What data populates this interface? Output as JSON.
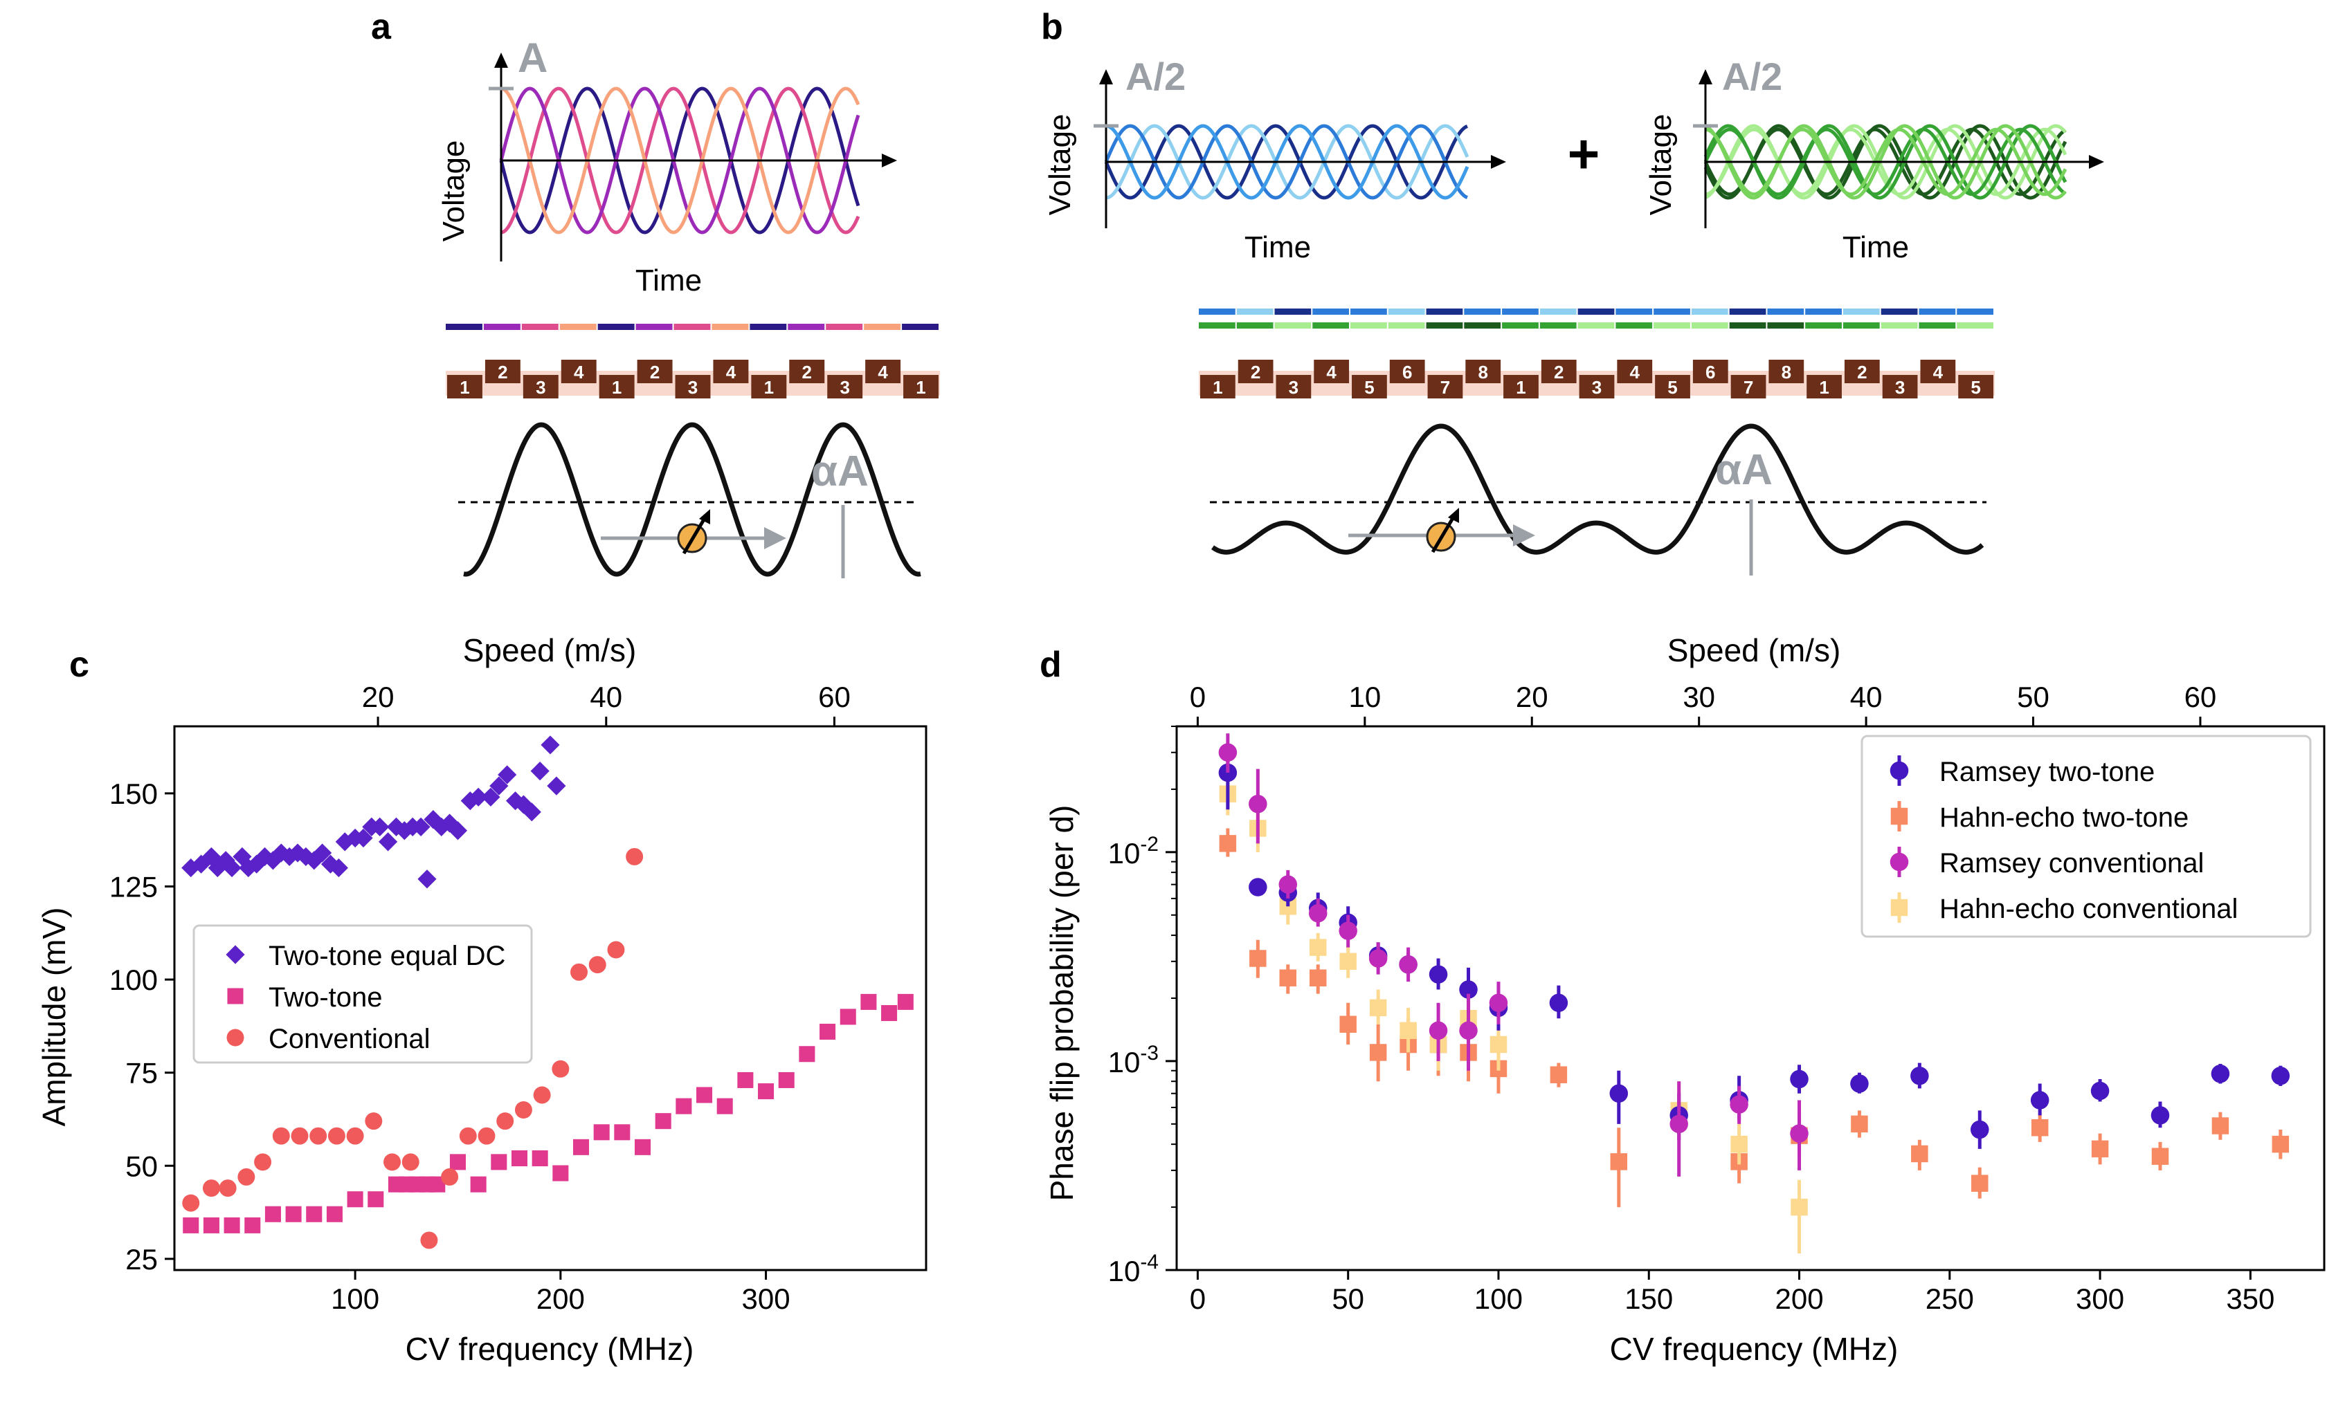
{
  "panel_labels": {
    "a": "a",
    "b": "b",
    "c": "c",
    "d": "d"
  },
  "panel_a": {
    "ylabel": "Voltage",
    "xlabel": "Time",
    "amp_label": "A",
    "tile_numbers": [
      "1",
      "2",
      "3",
      "4",
      "1",
      "2",
      "3",
      "4",
      "1",
      "2",
      "3",
      "4",
      "1"
    ],
    "alpha_label": "αA",
    "colors": {
      "navy": "#2b1a86",
      "purple": "#9b2ab8",
      "pink": "#de4c8e",
      "orange": "#f7a27a",
      "tile": "#6b2f19",
      "tile_bg": "#f8d8cc",
      "gray": "#9aa0a6"
    }
  },
  "panel_b": {
    "left": {
      "ylabel": "Voltage",
      "xlabel": "Time",
      "amp_label": "A/2"
    },
    "right": {
      "ylabel": "Voltage",
      "xlabel": "Time",
      "amp_label": "A/2"
    },
    "plus": "+",
    "tile_numbers": [
      "1",
      "2",
      "3",
      "4",
      "5",
      "6",
      "7",
      "8",
      "1",
      "2",
      "3",
      "4",
      "5",
      "6",
      "7",
      "8",
      "1",
      "2",
      "3",
      "4",
      "5"
    ],
    "alpha_label": "αA",
    "colors": {
      "blue1": "#1a2f8a",
      "blue2": "#2c7bd8",
      "blue3": "#8fd0f0",
      "green1": "#1d5a1d",
      "green2": "#34a334",
      "green3": "#a8ec90"
    }
  },
  "chart_data": [
    {
      "id": "c",
      "type": "scatter",
      "title": "",
      "xlabel": "CV frequency (MHz)",
      "ylabel": "Amplitude (mV)",
      "top_xlabel": "Speed (m/s)",
      "xlim": [
        12,
        378
      ],
      "ylim": [
        22,
        168
      ],
      "xticks": [
        100,
        200,
        300
      ],
      "yticks": [
        25,
        50,
        75,
        100,
        125,
        150
      ],
      "top_xticks": [
        20,
        40,
        60
      ],
      "speed_per_mhz": 0.18,
      "legend_position": "center-left",
      "series": [
        {
          "name": "Two-tone equal DC",
          "marker": "diamond",
          "color": "#5a22c8",
          "points": [
            [
              20,
              130
            ],
            [
              25,
              131
            ],
            [
              30,
              133
            ],
            [
              33,
              130
            ],
            [
              37,
              132
            ],
            [
              40,
              130
            ],
            [
              45,
              133
            ],
            [
              48,
              130
            ],
            [
              52,
              131
            ],
            [
              56,
              133
            ],
            [
              60,
              132
            ],
            [
              64,
              134
            ],
            [
              68,
              133
            ],
            [
              72,
              134
            ],
            [
              76,
              133
            ],
            [
              80,
              132
            ],
            [
              84,
              134
            ],
            [
              88,
              131
            ],
            [
              92,
              130
            ],
            [
              95,
              137
            ],
            [
              100,
              138
            ],
            [
              104,
              138
            ],
            [
              108,
              141
            ],
            [
              112,
              141
            ],
            [
              116,
              137
            ],
            [
              120,
              141
            ],
            [
              124,
              140
            ],
            [
              128,
              141
            ],
            [
              132,
              141
            ],
            [
              135,
              127
            ],
            [
              138,
              143
            ],
            [
              142,
              141
            ],
            [
              146,
              142
            ],
            [
              150,
              140
            ],
            [
              156,
              148
            ],
            [
              160,
              149
            ],
            [
              166,
              149
            ],
            [
              170,
              152
            ],
            [
              174,
              155
            ],
            [
              178,
              148
            ],
            [
              182,
              147
            ],
            [
              186,
              145
            ],
            [
              190,
              156
            ],
            [
              195,
              163
            ],
            [
              198,
              152
            ]
          ]
        },
        {
          "name": "Two-tone",
          "marker": "square",
          "color": "#e0398e",
          "points": [
            [
              20,
              34
            ],
            [
              30,
              34
            ],
            [
              40,
              34
            ],
            [
              50,
              34
            ],
            [
              60,
              37
            ],
            [
              70,
              37
            ],
            [
              80,
              37
            ],
            [
              90,
              37
            ],
            [
              100,
              41
            ],
            [
              110,
              41
            ],
            [
              120,
              45
            ],
            [
              125,
              45
            ],
            [
              130,
              45
            ],
            [
              135,
              45
            ],
            [
              140,
              45
            ],
            [
              150,
              51
            ],
            [
              160,
              45
            ],
            [
              170,
              51
            ],
            [
              180,
              52
            ],
            [
              190,
              52
            ],
            [
              200,
              48
            ],
            [
              210,
              55
            ],
            [
              220,
              59
            ],
            [
              230,
              59
            ],
            [
              240,
              55
            ],
            [
              250,
              62
            ],
            [
              260,
              66
            ],
            [
              270,
              69
            ],
            [
              280,
              66
            ],
            [
              290,
              73
            ],
            [
              300,
              70
            ],
            [
              310,
              73
            ],
            [
              320,
              80
            ],
            [
              330,
              86
            ],
            [
              340,
              90
            ],
            [
              350,
              94
            ],
            [
              360,
              91
            ],
            [
              368,
              94
            ]
          ]
        },
        {
          "name": "Conventional",
          "marker": "circle",
          "color": "#f15a5a",
          "points": [
            [
              20,
              40
            ],
            [
              30,
              44
            ],
            [
              38,
              44
            ],
            [
              47,
              47
            ],
            [
              55,
              51
            ],
            [
              64,
              58
            ],
            [
              73,
              58
            ],
            [
              82,
              58
            ],
            [
              91,
              58
            ],
            [
              100,
              58
            ],
            [
              109,
              62
            ],
            [
              118,
              51
            ],
            [
              127,
              51
            ],
            [
              136,
              30
            ],
            [
              146,
              47
            ],
            [
              155,
              58
            ],
            [
              164,
              58
            ],
            [
              173,
              62
            ],
            [
              182,
              65
            ],
            [
              191,
              69
            ],
            [
              200,
              76
            ],
            [
              209,
              102
            ],
            [
              218,
              104
            ],
            [
              227,
              108
            ],
            [
              236,
              133
            ]
          ]
        }
      ]
    },
    {
      "id": "d",
      "type": "scatter",
      "title": "",
      "xlabel": "CV frequency (MHz)",
      "ylabel": "Phase flip probability (per d)",
      "top_xlabel": "Speed (m/s)",
      "yscale": "log",
      "xlim": [
        -7,
        375
      ],
      "ylim": [
        0.0001,
        0.04
      ],
      "xticks": [
        0,
        50,
        100,
        150,
        200,
        250,
        300,
        350
      ],
      "ytick_labels": [
        "10^-4",
        "10^-3",
        "10^-2"
      ],
      "top_xticks": [
        0,
        10,
        20,
        30,
        40,
        50,
        60
      ],
      "speed_per_mhz": 0.18,
      "legend_position": "upper-right",
      "series": [
        {
          "name": "Ramsey two-tone",
          "marker": "circle",
          "color": "#4417c0",
          "points": [
            [
              10,
              0.024,
              0.016,
              0.03
            ],
            [
              20,
              0.0068,
              0.0062,
              0.0074
            ],
            [
              30,
              0.0064,
              0.0055,
              0.0075
            ],
            [
              40,
              0.0054,
              0.0046,
              0.0064
            ],
            [
              50,
              0.0046,
              0.0039,
              0.0055
            ],
            [
              60,
              0.0032,
              0.0028,
              0.0037
            ],
            [
              70,
              0.0029,
              0.0026,
              0.0033
            ],
            [
              80,
              0.0026,
              0.0022,
              0.0031
            ],
            [
              90,
              0.0022,
              0.0017,
              0.0028
            ],
            [
              100,
              0.0018,
              0.0014,
              0.0023
            ],
            [
              120,
              0.0019,
              0.0016,
              0.0023
            ],
            [
              140,
              0.0007,
              0.0005,
              0.0009
            ],
            [
              160,
              0.00055,
              0.00042,
              0.0007
            ],
            [
              180,
              0.00065,
              0.00052,
              0.00085
            ],
            [
              200,
              0.00082,
              0.0007,
              0.00096
            ],
            [
              220,
              0.00078,
              0.0007,
              0.00088
            ],
            [
              240,
              0.00085,
              0.00074,
              0.00098
            ],
            [
              260,
              0.00047,
              0.00038,
              0.00058
            ],
            [
              280,
              0.00065,
              0.00055,
              0.00078
            ],
            [
              300,
              0.00072,
              0.00064,
              0.00082
            ],
            [
              320,
              0.00055,
              0.00048,
              0.00064
            ],
            [
              340,
              0.00087,
              0.00078,
              0.00097
            ],
            [
              360,
              0.00085,
              0.00076,
              0.00095
            ]
          ]
        },
        {
          "name": "Hahn-echo two-tone",
          "marker": "square",
          "color": "#f78a62",
          "points": [
            [
              10,
              0.011,
              0.0095,
              0.013
            ],
            [
              20,
              0.0031,
              0.0025,
              0.0038
            ],
            [
              30,
              0.0025,
              0.0021,
              0.0029
            ],
            [
              40,
              0.0025,
              0.0021,
              0.0029
            ],
            [
              50,
              0.0015,
              0.0012,
              0.0019
            ],
            [
              60,
              0.0011,
              0.0008,
              0.0015
            ],
            [
              70,
              0.0012,
              0.0009,
              0.0016
            ],
            [
              80,
              0.0012,
              0.00085,
              0.0016
            ],
            [
              90,
              0.0011,
              0.0008,
              0.0016
            ],
            [
              100,
              0.00092,
              0.0007,
              0.0012
            ],
            [
              120,
              0.00086,
              0.00075,
              0.00098
            ],
            [
              140,
              0.00033,
              0.0002,
              0.00048
            ],
            [
              180,
              0.00033,
              0.00026,
              0.00042
            ],
            [
              200,
              0.00044,
              0.00035,
              0.00055
            ],
            [
              220,
              0.0005,
              0.00043,
              0.00058
            ],
            [
              240,
              0.00036,
              0.0003,
              0.00042
            ],
            [
              260,
              0.00026,
              0.00022,
              0.00031
            ],
            [
              280,
              0.00048,
              0.00041,
              0.00056
            ],
            [
              300,
              0.00038,
              0.00032,
              0.00045
            ],
            [
              320,
              0.00035,
              0.0003,
              0.00041
            ],
            [
              340,
              0.00049,
              0.00042,
              0.00057
            ],
            [
              360,
              0.0004,
              0.00034,
              0.00047
            ]
          ]
        },
        {
          "name": "Ramsey conventional",
          "marker": "circle",
          "color": "#c02ab8",
          "points": [
            [
              10,
              0.03,
              0.024,
              0.037
            ],
            [
              20,
              0.017,
              0.011,
              0.025
            ],
            [
              30,
              0.007,
              0.006,
              0.0082
            ],
            [
              40,
              0.0051,
              0.0044,
              0.006
            ],
            [
              50,
              0.0042,
              0.0035,
              0.005
            ],
            [
              60,
              0.0031,
              0.0026,
              0.0037
            ],
            [
              70,
              0.0029,
              0.0024,
              0.0035
            ],
            [
              80,
              0.0014,
              0.001,
              0.0019
            ],
            [
              90,
              0.0014,
              0.0009,
              0.0021
            ],
            [
              100,
              0.0019,
              0.0015,
              0.0024
            ],
            [
              160,
              0.0005,
              0.00028,
              0.0008
            ],
            [
              180,
              0.00062,
              0.0005,
              0.00076
            ],
            [
              200,
              0.00045,
              0.0003,
              0.00065
            ]
          ]
        },
        {
          "name": "Hahn-echo conventional",
          "marker": "square",
          "color": "#fcd98e",
          "points": [
            [
              10,
              0.019,
              0.015,
              0.024
            ],
            [
              20,
              0.013,
              0.01,
              0.017
            ],
            [
              30,
              0.0055,
              0.0045,
              0.0067
            ],
            [
              40,
              0.0035,
              0.003,
              0.0041
            ],
            [
              50,
              0.003,
              0.0025,
              0.0036
            ],
            [
              60,
              0.0018,
              0.0015,
              0.0022
            ],
            [
              70,
              0.0014,
              0.0011,
              0.0018
            ],
            [
              80,
              0.0012,
              0.0009,
              0.0016
            ],
            [
              90,
              0.0016,
              0.0012,
              0.0021
            ],
            [
              100,
              0.0012,
              0.0009,
              0.0016
            ],
            [
              160,
              0.00058,
              0.00042,
              0.0008
            ],
            [
              180,
              0.0004,
              0.00032,
              0.0005
            ],
            [
              200,
              0.0002,
              0.00012,
              0.00027
            ]
          ]
        }
      ]
    }
  ]
}
